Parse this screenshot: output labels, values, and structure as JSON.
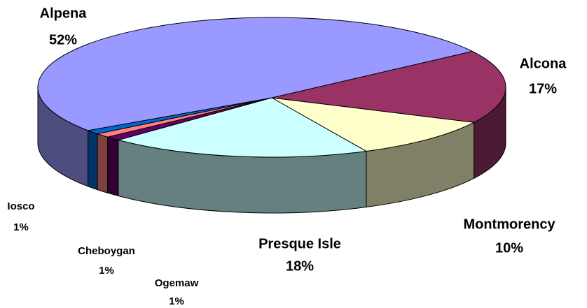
{
  "chart_data": {
    "type": "pie",
    "categories": [
      "Alcona",
      "Montmorency",
      "Presque Isle",
      "Ogemaw",
      "Cheboygan",
      "Iosco",
      "Alpena"
    ],
    "values": [
      17,
      10,
      18,
      1,
      1,
      1,
      52
    ],
    "value_labels": [
      "17%",
      "10%",
      "18%",
      "1%",
      "1%",
      "1%",
      "52%"
    ],
    "colors": [
      "#993366",
      "#ffffcc",
      "#ccffff",
      "#660066",
      "#ff8080",
      "#0066cc",
      "#9999ff"
    ]
  }
}
